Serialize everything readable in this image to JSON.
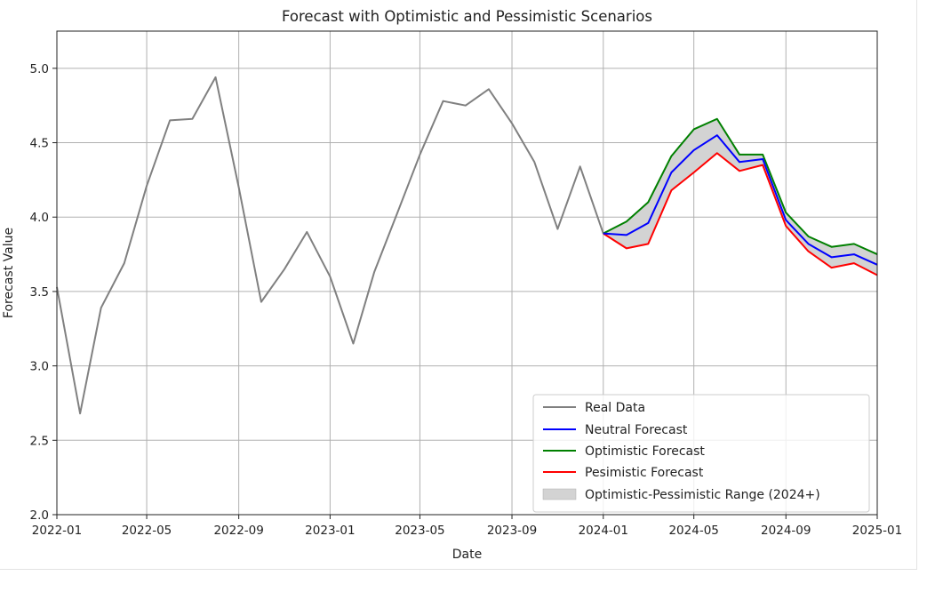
{
  "chart_data": {
    "type": "line",
    "title": "Forecast with Optimistic and Pessimistic Scenarios",
    "xlabel": "Date",
    "ylabel": "Forecast Value",
    "xlim": [
      "2022-01-01",
      "2025-01-01"
    ],
    "ylim": [
      2.0,
      5.25
    ],
    "grid": true,
    "legend_position": "bottom-right",
    "x_ticks": [
      "2022-01",
      "2022-05",
      "2022-09",
      "2023-01",
      "2023-05",
      "2023-09",
      "2024-01",
      "2024-05",
      "2024-09",
      "2025-01"
    ],
    "y_ticks": [
      "2.0",
      "2.5",
      "3.0",
      "3.5",
      "4.0",
      "4.5",
      "5.0"
    ],
    "series": [
      {
        "name": "Real Data",
        "color": "#808080",
        "x": [
          "2022-01-01",
          "2022-02-01",
          "2022-03-01",
          "2022-04-01",
          "2022-05-01",
          "2022-06-01",
          "2022-07-01",
          "2022-08-01",
          "2022-09-01",
          "2022-10-01",
          "2022-11-01",
          "2022-12-01",
          "2023-01-01",
          "2023-02-01",
          "2023-03-01",
          "2023-04-01",
          "2023-05-01",
          "2023-06-01",
          "2023-07-01",
          "2023-08-01",
          "2023-09-01",
          "2023-10-01",
          "2023-11-01",
          "2023-12-01",
          "2024-01-01"
        ],
        "y": [
          3.53,
          2.68,
          3.39,
          3.69,
          4.21,
          4.65,
          4.66,
          4.94,
          4.2,
          3.43,
          3.65,
          3.9,
          3.6,
          3.15,
          3.63,
          4.03,
          4.42,
          4.78,
          4.75,
          4.86,
          4.63,
          4.37,
          3.92,
          4.34,
          3.89
        ]
      },
      {
        "name": "Neutral Forecast",
        "color": "#0000ff",
        "x": [
          "2024-01-01",
          "2024-02-01",
          "2024-03-01",
          "2024-04-01",
          "2024-05-01",
          "2024-06-01",
          "2024-07-01",
          "2024-08-01",
          "2024-09-01",
          "2024-10-01",
          "2024-11-01",
          "2024-12-01",
          "2025-01-01"
        ],
        "y": [
          3.89,
          3.88,
          3.96,
          4.3,
          4.45,
          4.55,
          4.37,
          4.39,
          3.98,
          3.82,
          3.73,
          3.75,
          3.68
        ]
      },
      {
        "name": "Optimistic Forecast",
        "color": "#008000",
        "x": [
          "2024-01-01",
          "2024-02-01",
          "2024-03-01",
          "2024-04-01",
          "2024-05-01",
          "2024-06-01",
          "2024-07-01",
          "2024-08-01",
          "2024-09-01",
          "2024-10-01",
          "2024-11-01",
          "2024-12-01",
          "2025-01-01"
        ],
        "y": [
          3.89,
          3.97,
          4.1,
          4.41,
          4.59,
          4.66,
          4.42,
          4.42,
          4.03,
          3.87,
          3.8,
          3.82,
          3.75
        ]
      },
      {
        "name": "Pesimistic Forecast",
        "color": "#ff0000",
        "x": [
          "2024-01-01",
          "2024-02-01",
          "2024-03-01",
          "2024-04-01",
          "2024-05-01",
          "2024-06-01",
          "2024-07-01",
          "2024-08-01",
          "2024-09-01",
          "2024-10-01",
          "2024-11-01",
          "2024-12-01",
          "2025-01-01"
        ],
        "y": [
          3.89,
          3.79,
          3.82,
          4.18,
          4.3,
          4.43,
          4.31,
          4.35,
          3.94,
          3.77,
          3.66,
          3.69,
          3.61
        ]
      }
    ],
    "range": {
      "name": "Optimistic-Pessimistic Range (2024+)",
      "color": "#d3d3d3",
      "upper": "Optimistic Forecast",
      "lower": "Pesimistic Forecast"
    }
  }
}
